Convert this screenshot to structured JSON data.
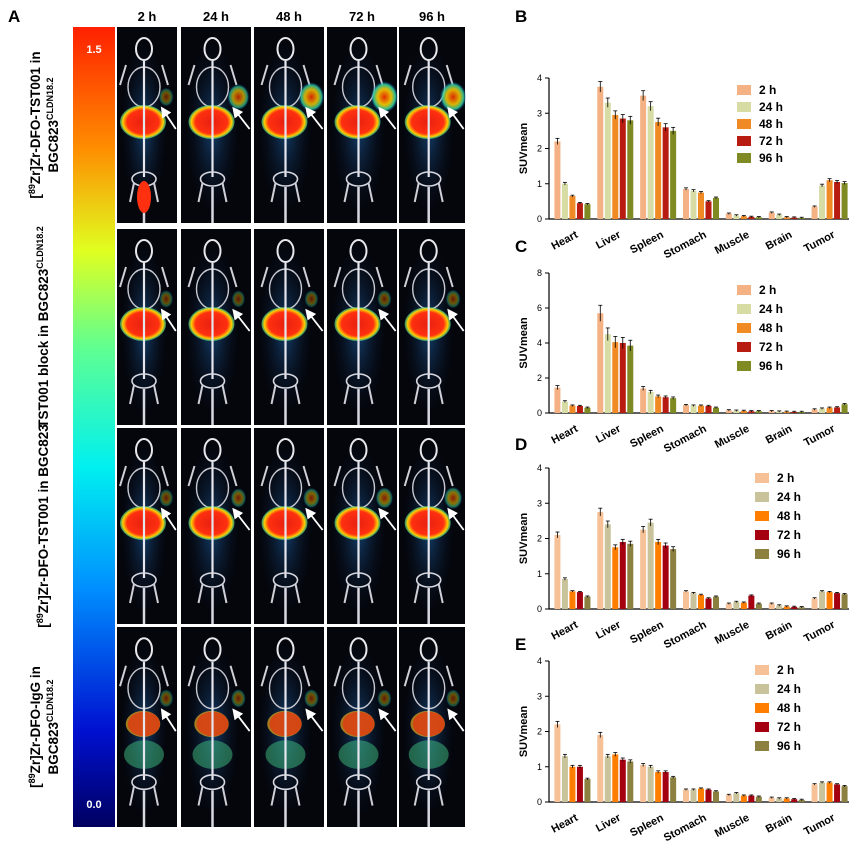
{
  "panel_a": {
    "label": "A",
    "time_labels": [
      "2 h",
      "24 h",
      "48 h",
      "72 h",
      "96 h"
    ],
    "row_labels": [
      {
        "pre": "[",
        "sup": "89",
        "main": "Zr]Zr-DFO-TST001 in",
        "line2": "BGC823",
        "line2_sup": "CLDN18.2"
      },
      {
        "pre": "",
        "sup": "",
        "main": "TST001 block in BGC823",
        "line2": "",
        "line2_sup": "CLDN18.2"
      },
      {
        "pre": "[",
        "sup": "89",
        "main": "Zr]Zr-DFO-TST001 in BGC823",
        "line2": "",
        "line2_sup": ""
      },
      {
        "pre": "[",
        "sup": "89",
        "main": "Zr]Zr-DFO-IgG in",
        "line2": "BGC823",
        "line2_sup": "CLDN18.2"
      }
    ],
    "scale_max": "1.5",
    "scale_min": "0.0",
    "tumor_intensity": [
      [
        0.15,
        0.55,
        0.75,
        0.85,
        0.8
      ],
      [
        0.1,
        0.08,
        0.1,
        0.12,
        0.15
      ],
      [
        0.12,
        0.2,
        0.25,
        0.3,
        0.35
      ],
      [
        0.12,
        0.15,
        0.15,
        0.12,
        0.12
      ]
    ]
  },
  "legend": [
    "2 h",
    "24 h",
    "48 h",
    "72 h",
    "96 h"
  ],
  "colors": {
    "B": [
      "#f4b183",
      "#d6dca4",
      "#f08a24",
      "#b81c10",
      "#7f8a22"
    ],
    "C": [
      "#f4b183",
      "#d6dca4",
      "#f08a24",
      "#b81c10",
      "#7f8a22"
    ],
    "D": [
      "#f6c197",
      "#c8c39a",
      "#ff7e00",
      "#a50010",
      "#8b8040"
    ],
    "E": [
      "#f6c197",
      "#c8c39a",
      "#ff7e00",
      "#a50010",
      "#8b8040"
    ]
  },
  "chart_data": [
    {
      "panel": "B",
      "type": "bar",
      "categories": [
        "Heart",
        "Liver",
        "Spleen",
        "Stomach",
        "Muscle",
        "Brain",
        "Tumor"
      ],
      "ylabel": "SUVmean",
      "ylim": [
        0,
        4
      ],
      "yticks": [
        "0",
        "1",
        "2",
        "3",
        "4"
      ],
      "series": [
        {
          "name": "2 h",
          "values": [
            2.2,
            3.75,
            3.5,
            0.85,
            0.15,
            0.18,
            0.35
          ]
        },
        {
          "name": "24 h",
          "values": [
            1.0,
            3.3,
            3.2,
            0.8,
            0.1,
            0.12,
            0.95
          ]
        },
        {
          "name": "48 h",
          "values": [
            0.65,
            2.95,
            2.75,
            0.75,
            0.08,
            0.05,
            1.1
          ]
        },
        {
          "name": "72 h",
          "values": [
            0.45,
            2.85,
            2.6,
            0.5,
            0.06,
            0.04,
            1.05
          ]
        },
        {
          "name": "96 h",
          "values": [
            0.42,
            2.8,
            2.5,
            0.6,
            0.05,
            0.03,
            1.02
          ]
        }
      ]
    },
    {
      "panel": "C",
      "type": "bar",
      "categories": [
        "Heart",
        "Liver",
        "Spleen",
        "Stomach",
        "Muscle",
        "Brain",
        "Tumor"
      ],
      "ylabel": "SUVmean",
      "ylim": [
        0,
        8
      ],
      "yticks": [
        "0",
        "2",
        "4",
        "6",
        "8"
      ],
      "series": [
        {
          "name": "2 h",
          "values": [
            1.45,
            5.7,
            1.4,
            0.45,
            0.15,
            0.1,
            0.2
          ]
        },
        {
          "name": "24 h",
          "values": [
            0.65,
            4.5,
            1.2,
            0.42,
            0.13,
            0.08,
            0.25
          ]
        },
        {
          "name": "48 h",
          "values": [
            0.42,
            4.05,
            0.95,
            0.42,
            0.12,
            0.07,
            0.3
          ]
        },
        {
          "name": "72 h",
          "values": [
            0.4,
            4.0,
            0.9,
            0.4,
            0.1,
            0.06,
            0.32
          ]
        },
        {
          "name": "96 h",
          "values": [
            0.3,
            3.85,
            0.85,
            0.3,
            0.1,
            0.06,
            0.5
          ]
        }
      ]
    },
    {
      "panel": "D",
      "type": "bar",
      "categories": [
        "Heart",
        "Liver",
        "Spleen",
        "Stomach",
        "Muscle",
        "Brain",
        "Tumor"
      ],
      "ylabel": "SUVmean",
      "ylim": [
        0,
        4
      ],
      "yticks": [
        "0",
        "1",
        "2",
        "3",
        "4"
      ],
      "series": [
        {
          "name": "2 h",
          "values": [
            2.1,
            2.75,
            2.25,
            0.5,
            0.15,
            0.15,
            0.3
          ]
        },
        {
          "name": "24 h",
          "values": [
            0.85,
            2.4,
            2.45,
            0.45,
            0.2,
            0.1,
            0.5
          ]
        },
        {
          "name": "48 h",
          "values": [
            0.5,
            1.75,
            1.9,
            0.4,
            0.18,
            0.07,
            0.48
          ]
        },
        {
          "name": "72 h",
          "values": [
            0.48,
            1.9,
            1.8,
            0.3,
            0.38,
            0.06,
            0.45
          ]
        },
        {
          "name": "96 h",
          "values": [
            0.35,
            1.85,
            1.7,
            0.35,
            0.15,
            0.05,
            0.42
          ]
        }
      ]
    },
    {
      "panel": "E",
      "type": "bar",
      "categories": [
        "Heart",
        "Liver",
        "Spleen",
        "Stomach",
        "Muscle",
        "Brain",
        "Tumor"
      ],
      "ylabel": "SUVmean",
      "ylim": [
        0,
        4
      ],
      "yticks": [
        "0",
        "1",
        "2",
        "3",
        "4"
      ],
      "series": [
        {
          "name": "2 h",
          "values": [
            2.2,
            1.9,
            1.05,
            0.35,
            0.2,
            0.12,
            0.5
          ]
        },
        {
          "name": "24 h",
          "values": [
            1.3,
            1.3,
            1.0,
            0.35,
            0.25,
            0.1,
            0.55
          ]
        },
        {
          "name": "48 h",
          "values": [
            1.0,
            1.35,
            0.85,
            0.38,
            0.18,
            0.1,
            0.55
          ]
        },
        {
          "name": "72 h",
          "values": [
            1.0,
            1.2,
            0.85,
            0.35,
            0.18,
            0.08,
            0.5
          ]
        },
        {
          "name": "96 h",
          "values": [
            0.65,
            1.15,
            0.7,
            0.3,
            0.15,
            0.06,
            0.45
          ]
        }
      ]
    }
  ]
}
